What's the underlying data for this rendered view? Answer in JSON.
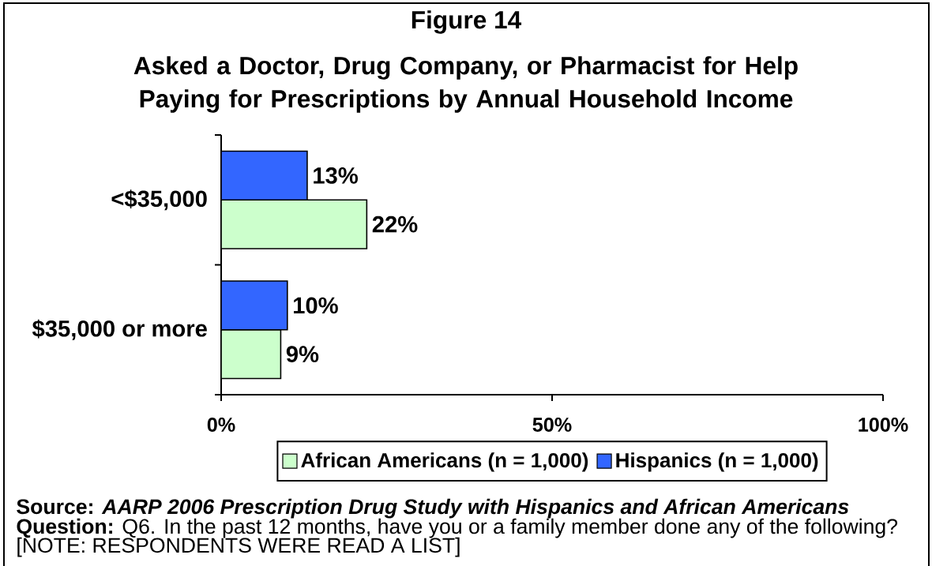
{
  "chart_data": {
    "type": "bar",
    "orientation": "horizontal",
    "title": "Figure 14",
    "subtitle": "Asked a Doctor, Drug Company, or Pharmacist for Help Paying for Prescriptions by Annual Household Income",
    "categories": [
      "<$35,000",
      "$35,000 or more"
    ],
    "series": [
      {
        "name": "African Americans (n = 1,000)",
        "color": "#ccffcc",
        "values": [
          22,
          9
        ],
        "value_labels": [
          "22%",
          "9%"
        ]
      },
      {
        "name": "Hispanics (n = 1,000)",
        "color": "#3366ff",
        "values": [
          13,
          10
        ],
        "value_labels": [
          "13%",
          "10%"
        ]
      }
    ],
    "xlim": [
      0,
      100
    ],
    "xticks": [
      {
        "value": 0,
        "label": "0%"
      },
      {
        "value": 50,
        "label": "50%"
      },
      {
        "value": 100,
        "label": "100%"
      }
    ],
    "grid": false,
    "legend": "bottom",
    "annotations": [
      "Source:  *AARP 2006 Prescription Drug Study with Hispanics and African Americans*",
      "**Question:**  Q6. In the past 12 months, have you or a family member done any of the following?",
      "[NOTE: RESPONDENTS WERE READ A LIST]"
    ]
  }
}
